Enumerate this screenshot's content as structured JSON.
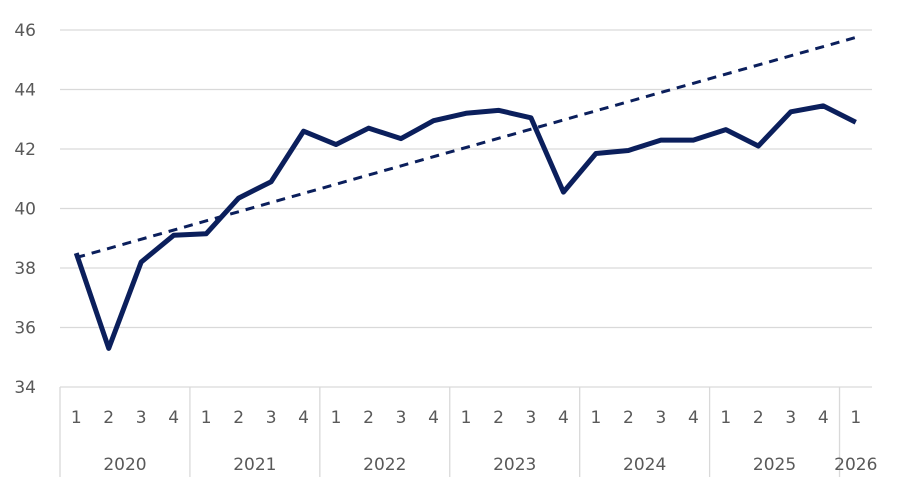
{
  "chart_data": {
    "type": "line",
    "title": "",
    "xlabel": "",
    "ylabel": "",
    "ylim": [
      34,
      46
    ],
    "y_ticks": [
      "34",
      "36",
      "38",
      "40",
      "42",
      "44",
      "46"
    ],
    "grid": "horizontal",
    "legend": "none",
    "x_quarters": [
      "1",
      "2",
      "3",
      "4",
      "1",
      "2",
      "3",
      "4",
      "1",
      "2",
      "3",
      "4",
      "1",
      "2",
      "3",
      "4",
      "1",
      "2",
      "3",
      "4",
      "1",
      "2",
      "3",
      "4",
      "1"
    ],
    "x_years": [
      {
        "label": "2020",
        "quarters": 4
      },
      {
        "label": "2021",
        "quarters": 4
      },
      {
        "label": "2022",
        "quarters": 4
      },
      {
        "label": "2023",
        "quarters": 4
      },
      {
        "label": "2024",
        "quarters": 4
      },
      {
        "label": "2025",
        "quarters": 4
      },
      {
        "label": "2026",
        "quarters": 1
      }
    ],
    "series": [
      {
        "style": "solid",
        "color": "#0b1f5c",
        "values": [
          38.5,
          35.3,
          38.2,
          39.1,
          39.15,
          40.35,
          40.9,
          42.6,
          42.15,
          42.7,
          42.35,
          42.95,
          43.2,
          43.3,
          43.05,
          40.55,
          41.85,
          41.95,
          42.3,
          42.3,
          42.65,
          42.1,
          43.25,
          43.45,
          42.9
        ]
      },
      {
        "style": "dashed",
        "color": "#0b1f5c",
        "values": [
          38.35,
          45.75
        ]
      }
    ]
  }
}
